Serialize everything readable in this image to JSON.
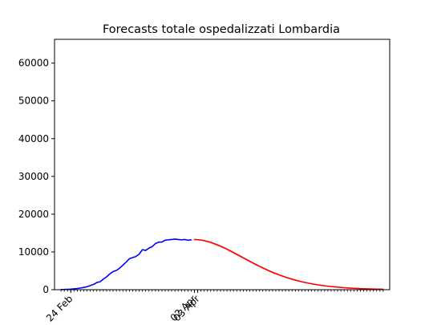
{
  "chart_data": {
    "type": "line",
    "title": "Forecasts totale ospedalizzati Lombardia",
    "xlabel": "",
    "ylabel": "",
    "grid": false,
    "x_unit": "days since 2020-02-21",
    "xlim": [
      -2,
      101
    ],
    "ylim": [
      0,
      66300
    ],
    "y_ticks": [
      0,
      10000,
      20000,
      30000,
      40000,
      50000,
      60000
    ],
    "x_tick_labels": [
      {
        "day": 3,
        "label": "24 Feb"
      },
      {
        "day": 41,
        "label": "02 Apr"
      },
      {
        "day": 42,
        "label": "03 Apr"
      }
    ],
    "minor_tick_days": [
      0,
      1,
      2,
      3,
      4,
      5,
      6,
      7,
      8,
      9,
      10,
      11,
      12,
      13,
      14,
      15,
      16,
      17,
      18,
      19,
      20,
      21,
      22,
      23,
      24,
      25,
      26,
      27,
      28,
      29,
      30,
      31,
      32,
      33,
      34,
      35,
      36,
      37,
      38,
      39,
      40,
      41,
      42,
      43,
      44,
      45,
      46,
      47,
      48,
      49,
      50,
      51,
      52,
      53,
      54,
      55,
      56,
      57,
      58,
      59,
      60,
      61,
      62,
      63,
      64,
      65,
      66,
      67,
      68,
      69,
      70,
      71,
      72,
      73,
      74,
      75,
      76,
      77,
      78,
      79,
      80,
      81,
      82,
      83,
      84,
      85,
      86,
      87,
      88,
      89,
      90,
      91,
      92,
      93,
      94,
      95,
      96,
      97,
      98,
      99
    ],
    "series": [
      {
        "color": "#0000ff",
        "x": [
          0,
          1,
          2,
          3,
          4,
          5,
          6,
          7,
          8,
          9,
          10,
          11,
          12,
          13,
          14,
          15,
          16,
          17,
          18,
          19,
          20,
          21,
          22,
          23,
          24,
          25,
          26,
          27,
          28,
          29,
          30,
          31,
          32,
          33,
          34,
          35,
          36,
          37,
          38,
          39,
          40
        ],
        "y": [
          40,
          60,
          100,
          150,
          230,
          320,
          450,
          600,
          800,
          1100,
          1400,
          1900,
          2100,
          2800,
          3400,
          4200,
          4800,
          5100,
          5700,
          6500,
          7300,
          8200,
          8500,
          8800,
          9400,
          10600,
          10400,
          11000,
          11400,
          12200,
          12600,
          12600,
          13100,
          13200,
          13300,
          13400,
          13300,
          13200,
          13300,
          13100,
          13200
        ]
      },
      {
        "color": "#ff0000",
        "x": [
          41,
          42,
          43,
          44,
          45,
          46,
          47,
          48,
          49,
          50,
          51,
          52,
          53,
          54,
          55,
          56,
          57,
          58,
          59,
          60,
          61,
          62,
          63,
          64,
          65,
          66,
          67,
          68,
          69,
          70,
          71,
          72,
          73,
          74,
          75,
          76,
          77,
          78,
          79,
          80,
          81,
          82,
          83,
          84,
          85,
          86,
          87,
          88,
          89,
          90,
          91,
          92,
          93,
          94,
          95,
          96,
          97,
          98,
          99
        ],
        "y": [
          13300,
          13250,
          13150,
          12990,
          12780,
          12530,
          12230,
          11900,
          11530,
          11140,
          10720,
          10280,
          9830,
          9370,
          8900,
          8430,
          7970,
          7510,
          7050,
          6610,
          6180,
          5760,
          5360,
          4970,
          4600,
          4250,
          3920,
          3610,
          3310,
          3040,
          2780,
          2540,
          2310,
          2100,
          1910,
          1730,
          1570,
          1420,
          1280,
          1150,
          1040,
          930,
          840,
          750,
          670,
          600,
          530,
          470,
          420,
          370,
          330,
          290,
          260,
          230,
          200,
          180,
          160,
          140,
          120
        ]
      },
      {
        "color": "#e3d1cc",
        "role": "uncertainty band",
        "x": [
          41,
          45,
          50,
          55,
          60,
          65,
          70,
          75,
          80,
          85,
          90,
          95,
          99
        ],
        "y_low": [
          13250,
          12500,
          10850,
          8600,
          6350,
          4400,
          2850,
          1780,
          1060,
          620,
          350,
          180,
          110
        ],
        "y_high": [
          13350,
          13050,
          11450,
          9250,
          6900,
          4800,
          3250,
          2060,
          1240,
          730,
          410,
          220,
          130
        ]
      }
    ]
  }
}
